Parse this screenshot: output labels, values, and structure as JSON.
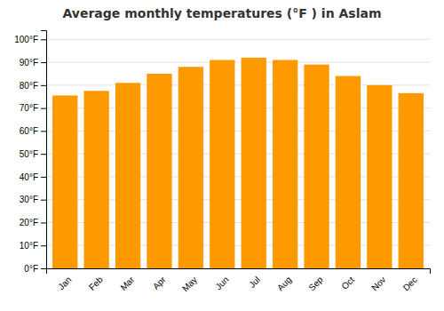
{
  "chart_data": {
    "type": "bar",
    "title": "Average monthly temperatures (°F ) in Aslam",
    "categories": [
      "Jan",
      "Feb",
      "Mar",
      "Apr",
      "May",
      "Jun",
      "Jul",
      "Aug",
      "Sep",
      "Oct",
      "Nov",
      "Dec"
    ],
    "values": [
      75.5,
      77.5,
      81.0,
      85.0,
      88.0,
      91.0,
      92.0,
      91.0,
      89.0,
      84.0,
      80.0,
      76.5
    ],
    "color": "#FF9900",
    "ylim": [
      0,
      104
    ],
    "yticks": [
      {
        "value": 0,
        "label": "0°F"
      },
      {
        "value": 10,
        "label": "10°F"
      },
      {
        "value": 20,
        "label": "20°F"
      },
      {
        "value": 30,
        "label": "30°F"
      },
      {
        "value": 40,
        "label": "40°F"
      },
      {
        "value": 50,
        "label": "50°F"
      },
      {
        "value": 60,
        "label": "60°F"
      },
      {
        "value": 70,
        "label": "70°F"
      },
      {
        "value": 80,
        "label": "80°F"
      },
      {
        "value": 90,
        "label": "90°F"
      },
      {
        "value": 100,
        "label": "100°F"
      }
    ],
    "grid": true
  }
}
